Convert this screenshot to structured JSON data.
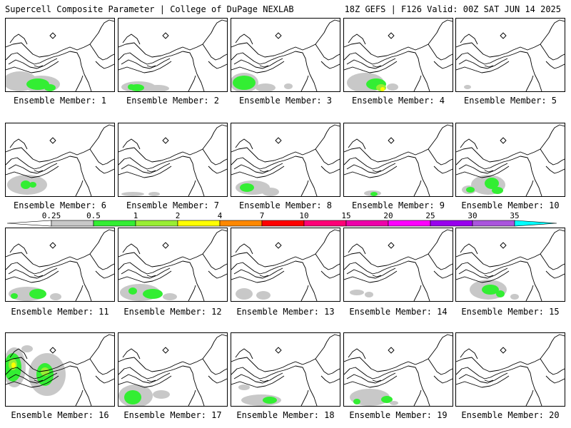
{
  "header": {
    "left": "Supercell Composite Parameter | College of DuPage NEXLAB",
    "right": "18Z GEFS | F126 Valid: 00Z SAT JUN 14 2025"
  },
  "colorbar": {
    "levels": [
      "0.25",
      "0.5",
      "1",
      "2",
      "4",
      "7",
      "10",
      "15",
      "20",
      "25",
      "30",
      "35"
    ],
    "colors": [
      "#c8c8c8",
      "#33ee33",
      "#99ee33",
      "#ffff00",
      "#ff8800",
      "#ff0000",
      "#ff0077",
      "#ee00aa",
      "#ff00ff",
      "#9900ee",
      "#aa55dd",
      "#00ffff"
    ]
  },
  "map_colors": {
    "light": "#c8c8c8",
    "green": "#33ee33",
    "lime": "#99ee33",
    "yellow": "#ffff00"
  },
  "members": [
    {
      "label": "Ensemble Member: 1",
      "blobs": [
        [
          "light",
          20,
          88,
          24,
          14
        ],
        [
          "light",
          50,
          92,
          26,
          12
        ],
        [
          "green",
          45,
          92,
          16,
          8
        ],
        [
          "green",
          62,
          97,
          8,
          5
        ]
      ]
    },
    {
      "label": "Ensemble Member: 2",
      "blobs": [
        [
          "light",
          28,
          96,
          24,
          8
        ],
        [
          "green",
          26,
          97,
          10,
          5
        ],
        [
          "green",
          18,
          96,
          5,
          4
        ],
        [
          "light",
          55,
          98,
          16,
          5
        ]
      ]
    },
    {
      "label": "Ensemble Member: 3",
      "blobs": [
        [
          "light",
          18,
          90,
          20,
          14
        ],
        [
          "green",
          18,
          90,
          16,
          10
        ],
        [
          "light",
          48,
          97,
          14,
          6
        ],
        [
          "light",
          80,
          95,
          6,
          4
        ]
      ]
    },
    {
      "label": "Ensemble Member: 4",
      "blobs": [
        [
          "light",
          30,
          90,
          26,
          14
        ],
        [
          "green",
          45,
          92,
          14,
          8
        ],
        [
          "lime",
          52,
          97,
          7,
          5
        ],
        [
          "yellow",
          54,
          99,
          3,
          3
        ],
        [
          "light",
          68,
          96,
          8,
          5
        ]
      ]
    },
    {
      "label": "Ensemble Member: 5",
      "blobs": [
        [
          "light",
          16,
          96,
          5,
          3
        ]
      ]
    },
    {
      "label": "Ensemble Member: 6",
      "blobs": [
        [
          "light",
          30,
          86,
          28,
          14
        ],
        [
          "green",
          28,
          86,
          7,
          6
        ],
        [
          "green",
          38,
          86,
          5,
          4
        ]
      ]
    },
    {
      "label": "Ensemble Member: 7",
      "blobs": [
        [
          "light",
          20,
          99,
          16,
          3
        ],
        [
          "light",
          50,
          99,
          8,
          3
        ]
      ]
    },
    {
      "label": "Ensemble Member: 8",
      "blobs": [
        [
          "light",
          30,
          90,
          24,
          10
        ],
        [
          "green",
          22,
          90,
          10,
          6
        ],
        [
          "light",
          55,
          96,
          12,
          6
        ]
      ]
    },
    {
      "label": "Ensemble Member: 9",
      "blobs": [
        [
          "light",
          40,
          98,
          12,
          4
        ],
        [
          "green",
          42,
          99,
          5,
          3
        ]
      ]
    },
    {
      "label": "Ensemble Member: 10",
      "blobs": [
        [
          "light",
          45,
          86,
          24,
          14
        ],
        [
          "green",
          50,
          84,
          10,
          8
        ],
        [
          "green",
          58,
          94,
          8,
          5
        ],
        [
          "light",
          18,
          93,
          10,
          6
        ],
        [
          "green",
          20,
          93,
          6,
          4
        ]
      ]
    },
    {
      "label": "Ensemble Member: 11",
      "blobs": [
        [
          "light",
          30,
          92,
          26,
          10
        ],
        [
          "green",
          45,
          92,
          12,
          7
        ],
        [
          "green",
          12,
          95,
          5,
          4
        ],
        [
          "light",
          70,
          96,
          8,
          5
        ]
      ]
    },
    {
      "label": "Ensemble Member: 12",
      "blobs": [
        [
          "light",
          30,
          90,
          28,
          12
        ],
        [
          "green",
          20,
          88,
          6,
          5
        ],
        [
          "green",
          48,
          92,
          14,
          7
        ],
        [
          "light",
          72,
          96,
          10,
          5
        ]
      ]
    },
    {
      "label": "Ensemble Member: 13",
      "blobs": [
        [
          "light",
          18,
          92,
          12,
          8
        ],
        [
          "light",
          45,
          94,
          10,
          6
        ]
      ]
    },
    {
      "label": "Ensemble Member: 14",
      "blobs": [
        [
          "light",
          18,
          90,
          10,
          4
        ],
        [
          "light",
          35,
          93,
          6,
          4
        ]
      ]
    },
    {
      "label": "Ensemble Member: 15",
      "blobs": [
        [
          "light",
          45,
          86,
          26,
          14
        ],
        [
          "green",
          48,
          86,
          12,
          7
        ],
        [
          "green",
          62,
          92,
          6,
          5
        ],
        [
          "light",
          82,
          96,
          6,
          4
        ]
      ]
    },
    {
      "label": "Ensemble Member: 16",
      "blobs": [
        [
          "light",
          12,
          48,
          16,
          28
        ],
        [
          "green",
          10,
          48,
          12,
          20
        ],
        [
          "lime",
          10,
          44,
          6,
          8
        ],
        [
          "yellow",
          11,
          45,
          3,
          4
        ],
        [
          "light",
          58,
          58,
          26,
          30
        ],
        [
          "green",
          55,
          58,
          12,
          16
        ],
        [
          "lime",
          55,
          54,
          6,
          6
        ],
        [
          "light",
          30,
          22,
          8,
          5
        ]
      ]
    },
    {
      "label": "Ensemble Member: 17",
      "blobs": [
        [
          "light",
          24,
          88,
          24,
          16
        ],
        [
          "green",
          20,
          90,
          12,
          10
        ],
        [
          "light",
          60,
          86,
          12,
          6
        ]
      ]
    },
    {
      "label": "Ensemble Member: 18",
      "blobs": [
        [
          "light",
          42,
          94,
          28,
          8
        ],
        [
          "green",
          54,
          94,
          10,
          5
        ],
        [
          "light",
          18,
          76,
          8,
          4
        ]
      ]
    },
    {
      "label": "Ensemble Member: 19",
      "blobs": [
        [
          "light",
          36,
          90,
          28,
          12
        ],
        [
          "green",
          18,
          96,
          5,
          4
        ],
        [
          "green",
          60,
          93,
          8,
          5
        ],
        [
          "light",
          70,
          98,
          6,
          3
        ]
      ]
    },
    {
      "label": "Ensemble Member: 20",
      "blobs": []
    }
  ]
}
